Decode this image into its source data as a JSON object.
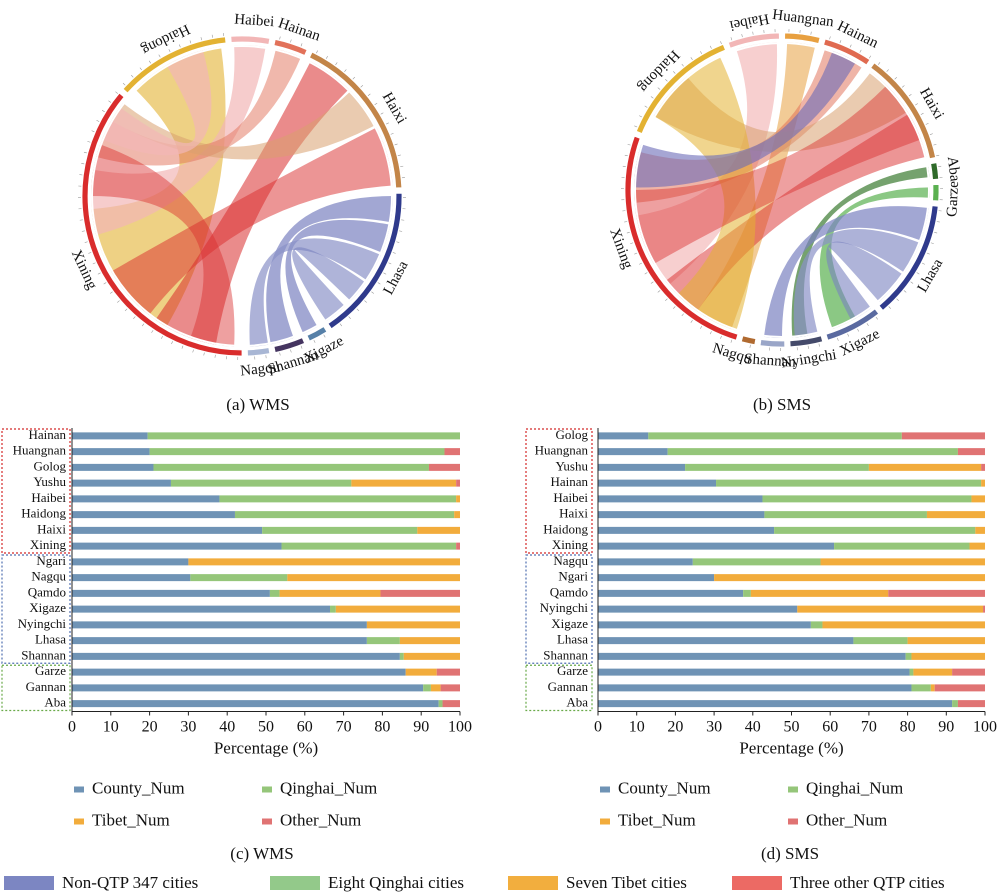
{
  "colors": {
    "county": "#6f93b5",
    "qinghai": "#95c67a",
    "tibet": "#f2ac3c",
    "other": "#e07373",
    "qinghai_group_box": "#d42a2a",
    "tibet_group_box": "#4f6fb0",
    "other_group_box": "#6aaa4a",
    "bottom_legend": [
      "#7c86c2",
      "#93c98a",
      "#f2ae3e",
      "#ec6a64"
    ]
  },
  "panel_captions": {
    "a": "(a) WMS",
    "b": "(b) SMS",
    "c": "(c) WMS",
    "d": "(d) SMS"
  },
  "bar_legend": [
    "County_Num",
    "Qinghai_Num",
    "Tibet_Num",
    "Other_Num"
  ],
  "bottom_legend": [
    "Non-QTP 347 cities",
    "Eight Qinghai cities",
    "Seven Tibet cities",
    "Three other QTP cities"
  ],
  "chord_a": {
    "labels": [
      "Haidong",
      "Haibei",
      "Hainan",
      "Haixi",
      "Lhasa",
      "Xigaze",
      "Shannan",
      "Nagqu",
      "Xining"
    ],
    "arc_colors": [
      "#e3b232",
      "#f2b6b6",
      "#e2725a",
      "#c38548",
      "#2f3a8c",
      "#5680a8",
      "#443460",
      "#a8b6d4",
      "#d92c2c"
    ]
  },
  "chord_b": {
    "labels": [
      "Haibei",
      "Huangnan",
      "Hainan",
      "Haixi",
      "Aba",
      "Garze",
      "Lhasa",
      "Xigaze",
      "Nyingchi",
      "Shannan",
      "Nagqu",
      "Xining",
      "Haidong"
    ],
    "arc_colors": [
      "#f2b6b6",
      "#e8a040",
      "#e06a50",
      "#c38548",
      "#2f6a2a",
      "#5ab050",
      "#2f3a8c",
      "#5a6aa0",
      "#444a6a",
      "#9aa6c8",
      "#b06a30",
      "#d92c2c",
      "#e3b232"
    ]
  },
  "chart_data": [
    {
      "type": "bar",
      "orientation": "horizontal",
      "stacked": true,
      "title": "",
      "xlabel": "Percentage (%)",
      "xlim": [
        0,
        100
      ],
      "xticks": [
        0,
        10,
        20,
        30,
        40,
        50,
        60,
        70,
        80,
        90,
        100
      ],
      "categories": [
        "Hainan",
        "Huangnan",
        "Golog",
        "Yushu",
        "Haibei",
        "Haidong",
        "Haixi",
        "Xining",
        "Ngari",
        "Nagqu",
        "Qamdo",
        "Xigaze",
        "Nyingchi",
        "Lhasa",
        "Shannan",
        "Garze",
        "Gannan",
        "Aba"
      ],
      "series": [
        {
          "name": "County_Num",
          "values": [
            19.5,
            20,
            21,
            25.5,
            38,
            42,
            49,
            54,
            30,
            30.5,
            51,
            66.5,
            76,
            76,
            84.5,
            86,
            90.5,
            94.5
          ]
        },
        {
          "name": "Qinghai_Num",
          "values": [
            80.5,
            76,
            71,
            46.5,
            61,
            56.5,
            40,
            45,
            0,
            25,
            2.5,
            1.5,
            0,
            8.5,
            1,
            0,
            2,
            1
          ]
        },
        {
          "name": "Tibet_Num",
          "values": [
            0,
            0,
            0,
            27,
            1,
            1.5,
            11,
            0,
            70,
            44.5,
            26,
            32,
            24,
            15.5,
            14.5,
            8,
            2.5,
            0
          ]
        },
        {
          "name": "Other_Num",
          "values": [
            0,
            4,
            8,
            1,
            0,
            0,
            0,
            1,
            0,
            0,
            20.5,
            0,
            0,
            0,
            0,
            6,
            5,
            4.5
          ]
        }
      ],
      "groups": [
        {
          "members": [
            "Hainan",
            "Huangnan",
            "Golog",
            "Yushu",
            "Haibei",
            "Haidong",
            "Haixi",
            "Xining"
          ]
        },
        {
          "members": [
            "Ngari",
            "Nagqu",
            "Qamdo",
            "Xigaze",
            "Nyingchi",
            "Lhasa",
            "Shannan"
          ]
        },
        {
          "members": [
            "Garze",
            "Gannan",
            "Aba"
          ]
        }
      ]
    },
    {
      "type": "bar",
      "orientation": "horizontal",
      "stacked": true,
      "title": "",
      "xlabel": "Percentage (%)",
      "xlim": [
        0,
        100
      ],
      "xticks": [
        0,
        10,
        20,
        30,
        40,
        50,
        60,
        70,
        80,
        90,
        100
      ],
      "categories": [
        "Golog",
        "Huangnan",
        "Yushu",
        "Hainan",
        "Haibei",
        "Haixi",
        "Haidong",
        "Xining",
        "Nagqu",
        "Ngari",
        "Qamdo",
        "Nyingchi",
        "Xigaze",
        "Lhasa",
        "Shannan",
        "Garze",
        "Gannan",
        "Aba"
      ],
      "series": [
        {
          "name": "County_Num",
          "values": [
            13,
            18,
            22.5,
            30.5,
            42.5,
            43,
            45.5,
            61,
            24.5,
            30,
            37.5,
            51.5,
            55,
            66,
            79.5,
            80.5,
            81,
            91.5
          ]
        },
        {
          "name": "Qinghai_Num",
          "values": [
            65.5,
            75,
            47.5,
            68.5,
            54,
            42,
            52,
            35,
            33,
            0,
            2,
            0,
            3,
            14,
            1.5,
            1,
            5,
            1.5
          ]
        },
        {
          "name": "Tibet_Num",
          "values": [
            0,
            0,
            29,
            1,
            3.5,
            15,
            2.5,
            4,
            42.5,
            70,
            35.5,
            48,
            42,
            20,
            19,
            10,
            1,
            0
          ]
        },
        {
          "name": "Other_Num",
          "values": [
            21.5,
            7,
            1,
            0,
            0,
            0,
            0,
            0,
            0,
            0,
            25,
            0.5,
            0,
            0,
            0,
            8.5,
            13,
            7
          ]
        }
      ],
      "groups": [
        {
          "members": [
            "Golog",
            "Huangnan",
            "Yushu",
            "Hainan",
            "Haibei",
            "Haixi",
            "Haidong",
            "Xining"
          ]
        },
        {
          "members": [
            "Nagqu",
            "Ngari",
            "Qamdo",
            "Nyingchi",
            "Xigaze",
            "Lhasa",
            "Shannan"
          ]
        },
        {
          "members": [
            "Garze",
            "Gannan",
            "Aba"
          ]
        }
      ]
    }
  ]
}
